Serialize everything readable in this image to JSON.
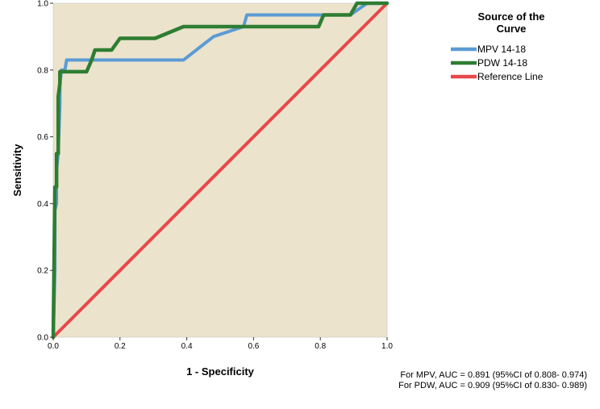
{
  "chart_data": {
    "type": "line",
    "title": "",
    "xlabel": "1 - Specificity",
    "ylabel": "Sensitivity",
    "xlim": [
      0.0,
      1.0
    ],
    "ylim": [
      0.0,
      1.0
    ],
    "x_ticks": [
      "0.0",
      "0.2",
      "0.4",
      "0.6",
      "0.8",
      "1.0"
    ],
    "y_ticks": [
      "0.0",
      "0.2",
      "0.4",
      "0.6",
      "0.8",
      "1.0"
    ],
    "plot_background": "#ebe3cc",
    "legend": {
      "title_line1": "Source of the",
      "title_line2": "Curve",
      "position": "top-right, outside plot"
    },
    "series": [
      {
        "name": "MPV 14-18",
        "color": "#5b9bd5",
        "x": [
          0,
          0.005,
          0.005,
          0.01,
          0.01,
          0.015,
          0.02,
          0.02,
          0.025,
          0.035,
          0.04,
          0.39,
          0.48,
          0.57,
          0.58,
          0.89,
          0.94,
          1.0
        ],
        "y": [
          0,
          0.2,
          0.38,
          0.4,
          0.5,
          0.55,
          0.7,
          0.76,
          0.8,
          0.8,
          0.83,
          0.83,
          0.9,
          0.93,
          0.965,
          0.965,
          1.0,
          1.0
        ]
      },
      {
        "name": "PDW 14-18",
        "color": "#2e7d32",
        "x": [
          0,
          0.005,
          0.01,
          0.01,
          0.015,
          0.015,
          0.02,
          0.02,
          0.025,
          0.04,
          0.1,
          0.115,
          0.125,
          0.175,
          0.2,
          0.305,
          0.39,
          0.6,
          0.795,
          0.81,
          0.89,
          0.91,
          1.0
        ],
        "y": [
          0,
          0.45,
          0.45,
          0.55,
          0.55,
          0.72,
          0.76,
          0.795,
          0.795,
          0.795,
          0.795,
          0.83,
          0.86,
          0.86,
          0.895,
          0.895,
          0.93,
          0.93,
          0.93,
          0.965,
          0.965,
          1.0,
          1.0
        ]
      },
      {
        "name": "Reference Line",
        "color": "#e8484b",
        "x": [
          0,
          1
        ],
        "y": [
          0,
          1
        ]
      }
    ],
    "annotations": [
      "For MPV, AUC = 0.891 (95%CI of 0.808- 0.974)",
      "For PDW, AUC = 0.909 (95%CI of 0.830- 0.989)"
    ]
  }
}
